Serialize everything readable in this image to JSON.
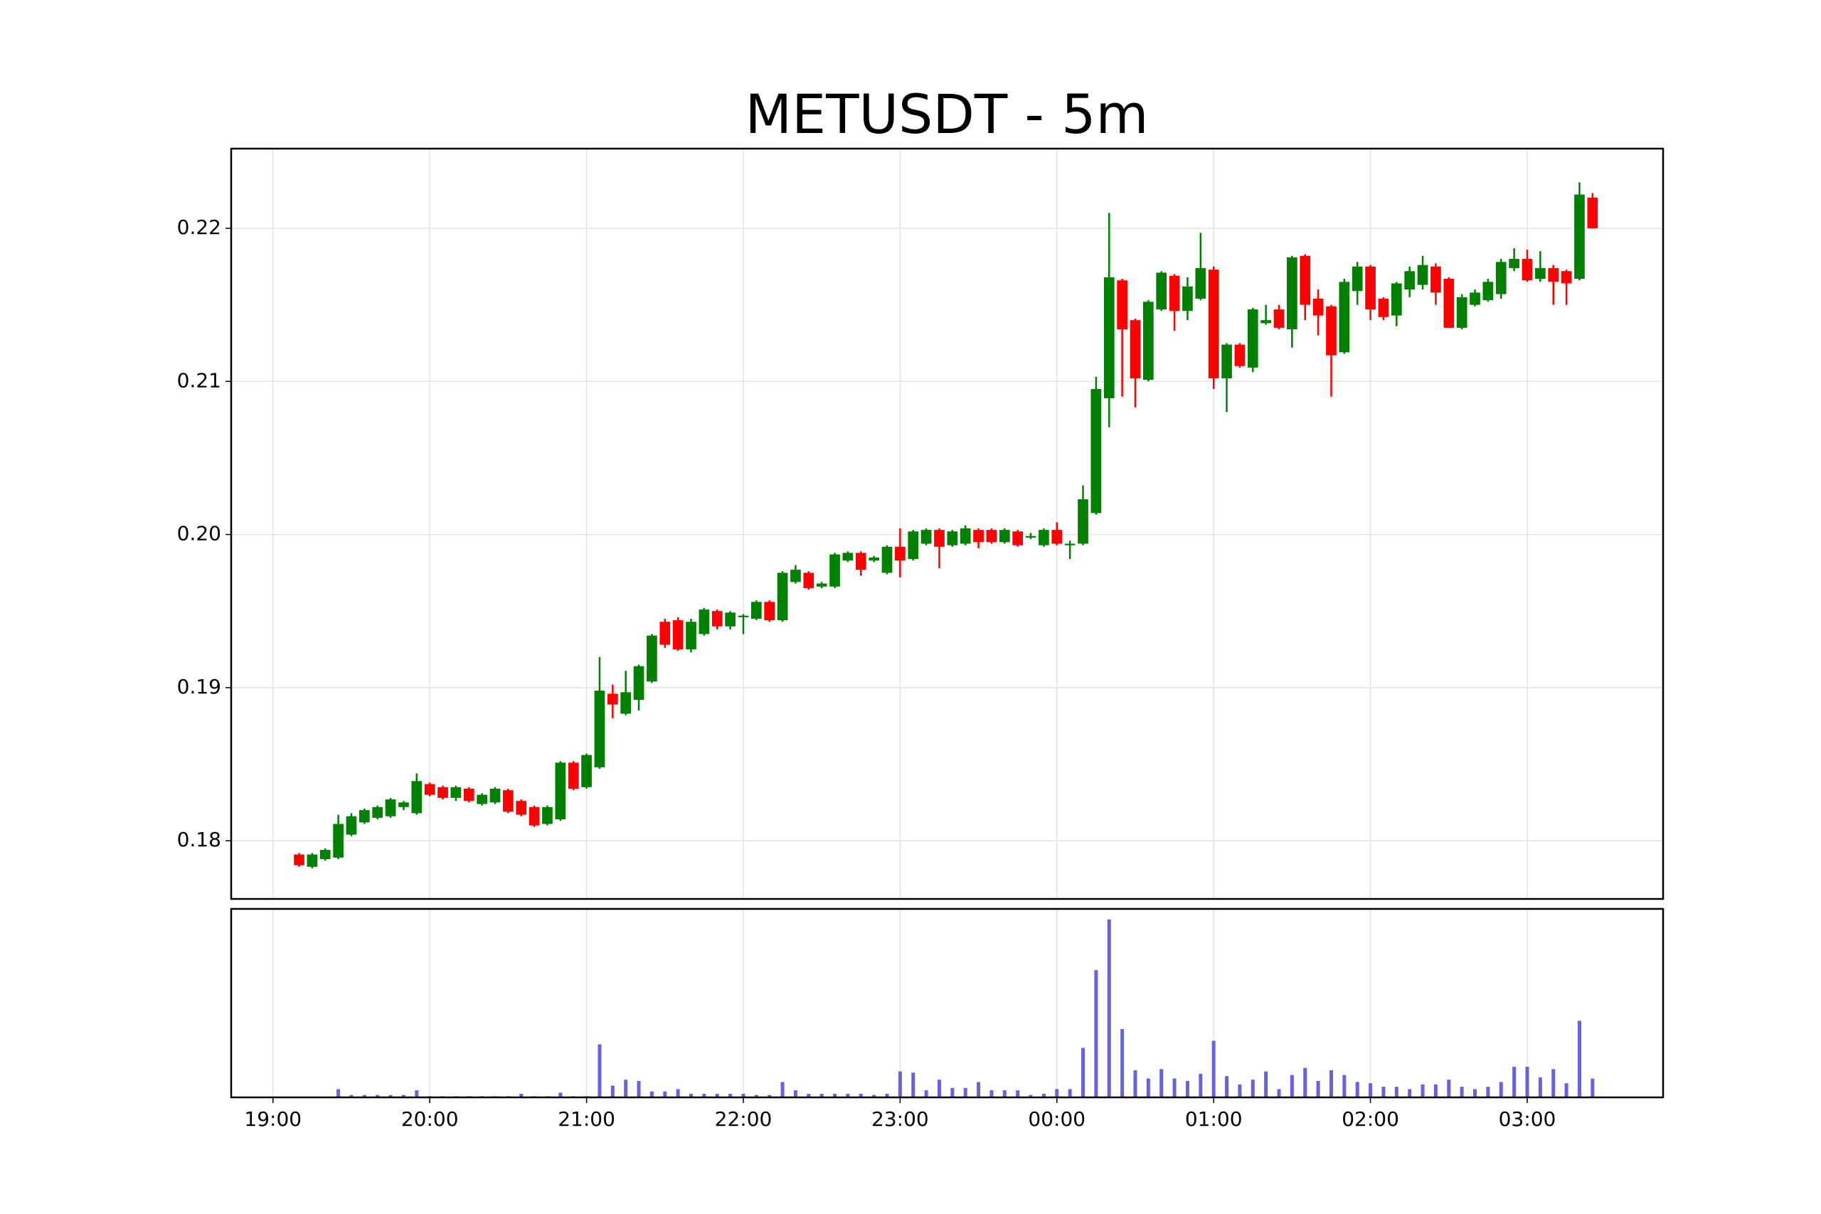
{
  "chart_data": {
    "type": "candlestick",
    "title": "METUSDT - 5m",
    "x": [
      "19:10",
      "19:15",
      "19:20",
      "19:25",
      "19:30",
      "19:35",
      "19:40",
      "19:45",
      "19:50",
      "19:55",
      "20:00",
      "20:05",
      "20:10",
      "20:15",
      "20:20",
      "20:25",
      "20:30",
      "20:35",
      "20:40",
      "20:45",
      "20:50",
      "20:55",
      "21:00",
      "21:05",
      "21:10",
      "21:15",
      "21:20",
      "21:25",
      "21:30",
      "21:35",
      "21:40",
      "21:45",
      "21:50",
      "21:55",
      "22:00",
      "22:05",
      "22:10",
      "22:15",
      "22:20",
      "22:25",
      "22:30",
      "22:35",
      "22:40",
      "22:45",
      "22:50",
      "22:55",
      "23:00",
      "23:05",
      "23:10",
      "23:15",
      "23:20",
      "23:25",
      "23:30",
      "23:35",
      "23:40",
      "23:45",
      "23:50",
      "23:55",
      "00:00",
      "00:05",
      "00:10",
      "00:15",
      "00:20",
      "00:25",
      "00:30",
      "00:35",
      "00:40",
      "00:45",
      "00:50",
      "00:55",
      "01:00",
      "01:05",
      "01:10",
      "01:15",
      "01:20",
      "01:25",
      "01:30",
      "01:35",
      "01:40",
      "01:45",
      "01:50",
      "01:55",
      "02:00",
      "02:05",
      "02:10",
      "02:15",
      "02:20",
      "02:25",
      "02:30",
      "02:35",
      "02:40",
      "02:45",
      "02:50",
      "02:55",
      "03:00",
      "03:05",
      "03:10",
      "03:15",
      "03:20",
      "03:25"
    ],
    "open": [
      0.1791,
      0.1783,
      0.1788,
      0.1789,
      0.1804,
      0.1812,
      0.1815,
      0.1816,
      0.1822,
      0.1818,
      0.1837,
      0.1835,
      0.1828,
      0.1834,
      0.1824,
      0.1825,
      0.1833,
      0.1826,
      0.1822,
      0.1811,
      0.1814,
      0.1851,
      0.1835,
      0.1848,
      0.1896,
      0.1883,
      0.1892,
      0.1904,
      0.1943,
      0.1944,
      0.1925,
      0.1935,
      0.195,
      0.194,
      0.1946,
      0.1945,
      0.1956,
      0.1944,
      0.1969,
      0.1975,
      0.1966,
      0.1966,
      0.1983,
      0.1988,
      0.1983,
      0.1975,
      0.1992,
      0.1984,
      0.1994,
      0.2003,
      0.1993,
      0.1994,
      0.2003,
      0.2003,
      0.1995,
      0.2002,
      0.1998,
      0.1993,
      0.2003,
      0.1993,
      0.1994,
      0.2014,
      0.2089,
      0.2166,
      0.214,
      0.2101,
      0.2147,
      0.2169,
      0.2146,
      0.2154,
      0.2173,
      0.2102,
      0.2124,
      0.2109,
      0.2138,
      0.2147,
      0.2134,
      0.2182,
      0.2154,
      0.2149,
      0.2119,
      0.2159,
      0.2175,
      0.2154,
      0.2143,
      0.216,
      0.2163,
      0.2175,
      0.2167,
      0.2135,
      0.215,
      0.2153,
      0.2157,
      0.2174,
      0.218,
      0.2167,
      0.2174,
      0.2172,
      0.2167,
      0.222
    ],
    "high": [
      0.1792,
      0.1792,
      0.1795,
      0.1817,
      0.1818,
      0.1821,
      0.1823,
      0.1828,
      0.1826,
      0.1844,
      0.1838,
      0.1836,
      0.1836,
      0.1835,
      0.1831,
      0.1835,
      0.1834,
      0.1827,
      0.1823,
      0.1823,
      0.1852,
      0.1852,
      0.1857,
      0.192,
      0.1902,
      0.1911,
      0.1915,
      0.1935,
      0.1945,
      0.1946,
      0.1945,
      0.1952,
      0.1951,
      0.195,
      0.1948,
      0.1957,
      0.1957,
      0.1976,
      0.198,
      0.1976,
      0.1969,
      0.1988,
      0.1989,
      0.1989,
      0.1986,
      0.1993,
      0.2004,
      0.2003,
      0.2004,
      0.2004,
      0.2003,
      0.2006,
      0.2004,
      0.2004,
      0.2004,
      0.2003,
      0.2001,
      0.2004,
      0.2008,
      0.1996,
      0.2032,
      0.2103,
      0.221,
      0.2167,
      0.2141,
      0.2153,
      0.2172,
      0.217,
      0.2168,
      0.2197,
      0.2175,
      0.2125,
      0.2125,
      0.2148,
      0.215,
      0.215,
      0.2182,
      0.2183,
      0.216,
      0.215,
      0.2167,
      0.2178,
      0.2176,
      0.2155,
      0.2165,
      0.2175,
      0.2182,
      0.2177,
      0.2168,
      0.2157,
      0.216,
      0.2167,
      0.218,
      0.2187,
      0.2186,
      0.2185,
      0.2176,
      0.2173,
      0.223,
      0.2223
    ],
    "low": [
      0.1783,
      0.1782,
      0.1787,
      0.1788,
      0.1803,
      0.1811,
      0.1814,
      0.1815,
      0.182,
      0.1817,
      0.1829,
      0.1827,
      0.1826,
      0.1825,
      0.1823,
      0.1824,
      0.1818,
      0.1816,
      0.1809,
      0.181,
      0.1813,
      0.1833,
      0.1834,
      0.1847,
      0.188,
      0.1882,
      0.1885,
      0.1903,
      0.1926,
      0.1924,
      0.1923,
      0.1934,
      0.1938,
      0.1938,
      0.1935,
      0.1944,
      0.1943,
      0.1943,
      0.1968,
      0.1964,
      0.1965,
      0.1965,
      0.1982,
      0.1973,
      0.1982,
      0.1974,
      0.1972,
      0.1983,
      0.1993,
      0.1978,
      0.1992,
      0.1993,
      0.1991,
      0.1994,
      0.1994,
      0.1992,
      0.1997,
      0.1992,
      0.1993,
      0.1984,
      0.1993,
      0.2013,
      0.207,
      0.209,
      0.2083,
      0.21,
      0.2146,
      0.2133,
      0.214,
      0.2153,
      0.2095,
      0.208,
      0.2109,
      0.2106,
      0.2137,
      0.2134,
      0.2122,
      0.214,
      0.213,
      0.209,
      0.2118,
      0.215,
      0.214,
      0.214,
      0.2136,
      0.2155,
      0.216,
      0.215,
      0.2135,
      0.2134,
      0.2149,
      0.2152,
      0.2154,
      0.2172,
      0.2165,
      0.2165,
      0.215,
      0.215,
      0.2166,
      0.22
    ],
    "close": [
      0.1784,
      0.1791,
      0.1794,
      0.1811,
      0.1816,
      0.182,
      0.1822,
      0.1827,
      0.1825,
      0.1839,
      0.183,
      0.1828,
      0.1835,
      0.1826,
      0.183,
      0.1834,
      0.1819,
      0.1817,
      0.181,
      0.1822,
      0.1851,
      0.1834,
      0.1856,
      0.1898,
      0.1889,
      0.1897,
      0.1914,
      0.1934,
      0.1928,
      0.1925,
      0.1943,
      0.1951,
      0.194,
      0.1949,
      0.1947,
      0.1956,
      0.1944,
      0.1975,
      0.1977,
      0.1965,
      0.1968,
      0.1987,
      0.1988,
      0.1977,
      0.1985,
      0.1992,
      0.1983,
      0.2002,
      0.2003,
      0.1992,
      0.2002,
      0.2004,
      0.1995,
      0.1995,
      0.2003,
      0.1993,
      0.1999,
      0.2003,
      0.1994,
      0.1994,
      0.2023,
      0.2095,
      0.2168,
      0.2134,
      0.2102,
      0.2152,
      0.2171,
      0.2146,
      0.2162,
      0.2174,
      0.2102,
      0.2124,
      0.211,
      0.2147,
      0.214,
      0.2135,
      0.2181,
      0.215,
      0.2143,
      0.2117,
      0.2165,
      0.2175,
      0.2147,
      0.2142,
      0.2164,
      0.2172,
      0.2176,
      0.2158,
      0.2135,
      0.2155,
      0.2158,
      0.2165,
      0.2178,
      0.218,
      0.2166,
      0.2174,
      0.2165,
      0.2164,
      0.2222,
      0.22
    ],
    "volume": [
      0,
      0,
      0,
      7,
      2,
      2,
      2,
      2,
      2,
      6,
      1,
      1,
      1,
      1,
      1,
      1,
      1,
      3,
      1,
      1,
      4,
      1,
      1,
      45,
      10,
      15,
      14,
      5,
      5,
      7,
      3,
      3,
      3,
      3,
      3,
      2,
      2,
      13,
      6,
      3,
      3,
      3,
      3,
      3,
      2,
      3,
      22,
      21,
      6,
      15,
      8,
      8,
      13,
      6,
      6,
      6,
      2,
      3,
      7,
      7,
      42,
      108,
      151,
      58,
      23,
      16,
      24,
      16,
      14,
      20,
      48,
      18,
      11,
      15,
      22,
      7,
      19,
      25,
      14,
      23,
      19,
      13,
      12,
      9,
      9,
      7,
      11,
      11,
      15,
      9,
      7,
      9,
      13,
      26,
      26,
      17,
      24,
      12,
      65,
      16
    ],
    "up_color": "#008000",
    "down_color": "#ff0000",
    "volume_color": "#6464e0",
    "xlim": [
      "18:44",
      "03:52"
    ],
    "xticks": [
      "19:00",
      "20:00",
      "21:00",
      "22:00",
      "23:00",
      "00:00",
      "01:00",
      "02:00",
      "03:00"
    ],
    "ylim": [
      0.1762,
      0.2252
    ],
    "yticks": [
      0.18,
      0.19,
      {
        "value": 0.2,
        "label": "0.20"
      },
      0.21,
      0.22
    ],
    "volume_ylim": [
      0,
      160
    ],
    "grid": true
  }
}
